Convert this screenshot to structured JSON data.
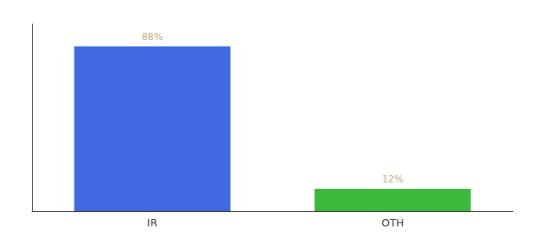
{
  "chart_data": {
    "type": "bar",
    "categories": [
      "IR",
      "OTH"
    ],
    "values": [
      88,
      12
    ],
    "colors": [
      "#4169e1",
      "#3cb83c"
    ],
    "ylim": [
      0,
      100
    ],
    "data_labels": true,
    "value_labels": [
      "88%",
      "12%"
    ],
    "tick_labels": "x",
    "grid": false
  }
}
